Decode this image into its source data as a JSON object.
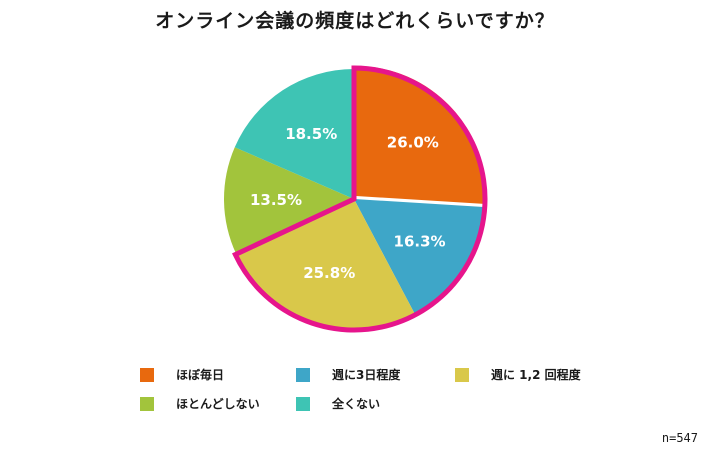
{
  "title": "オンライン会議の頻度はどれくらいですか？",
  "sample_size": "n=547",
  "highlight_color": "#e6158c",
  "chart_data": {
    "type": "pie",
    "title": "オンライン会議の頻度はどれくらいですか？",
    "categories": [
      "ほぼ毎日",
      "週に3日程度",
      "週に 1,2 回程度",
      "ほとんどしない",
      "全くない"
    ],
    "values": [
      26.0,
      16.3,
      25.8,
      13.5,
      18.5
    ],
    "labels": [
      "26.0%",
      "16.3%",
      "25.8%",
      "13.5%",
      "18.5%"
    ],
    "colors": [
      "#e8690e",
      "#3ea6c8",
      "#d9c84a",
      "#a2c43c",
      "#3ec4b4"
    ],
    "start_angle": "12 o'clock, clockwise",
    "highlighted": [
      "ほぼ毎日",
      "週に3日程度",
      "週に 1,2 回程度"
    ],
    "legend_position": "bottom",
    "annotation": "n=547"
  },
  "legend": [
    {
      "label": "ほぼ毎日",
      "color": "#e8690e"
    },
    {
      "label": "週に3日程度",
      "color": "#3ea6c8"
    },
    {
      "label": "週に 1,2 回程度",
      "color": "#d9c84a"
    },
    {
      "label": "ほとんどしない",
      "color": "#a2c43c"
    },
    {
      "label": "全くない",
      "color": "#3ec4b4"
    }
  ]
}
